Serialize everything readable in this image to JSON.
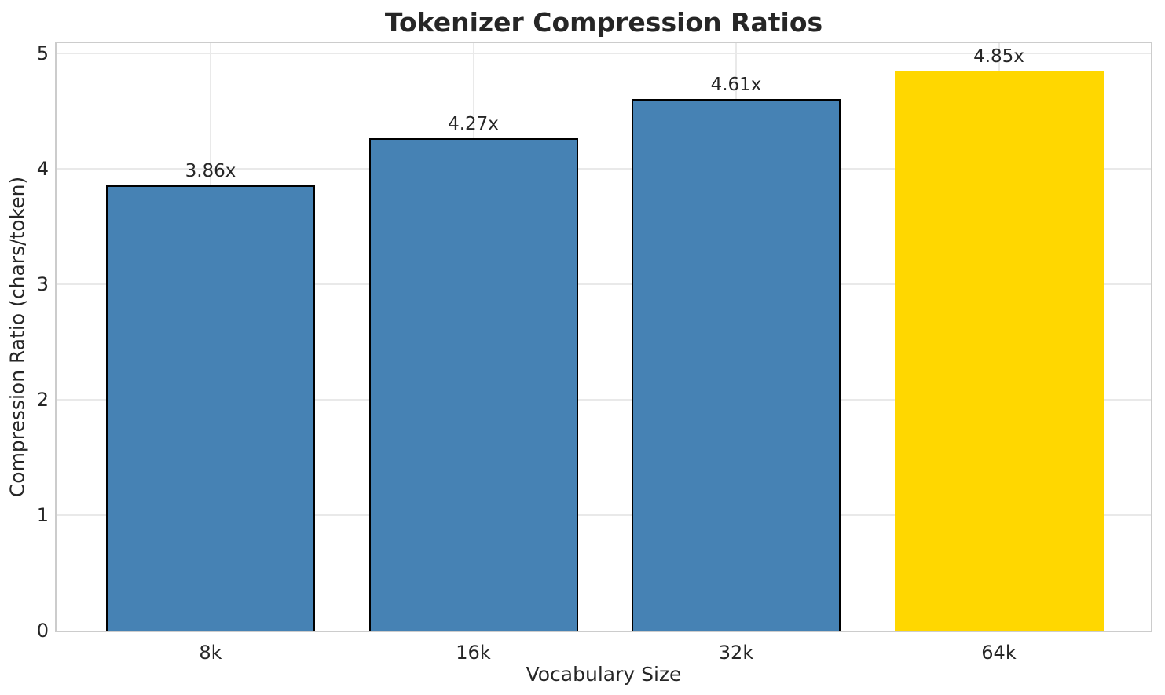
{
  "chart_data": {
    "type": "bar",
    "title": "Tokenizer Compression Ratios",
    "xlabel": "Vocabulary Size",
    "ylabel": "Compression Ratio (chars/token)",
    "categories": [
      "8k",
      "16k",
      "32k",
      "64k"
    ],
    "values": [
      3.86,
      4.27,
      4.61,
      4.85
    ],
    "bar_labels": [
      "3.86x",
      "4.27x",
      "4.61x",
      "4.85x"
    ],
    "yticks": [
      0,
      1,
      2,
      3,
      4,
      5
    ],
    "ylim": [
      0,
      5.09
    ],
    "grid": true,
    "legend_position": "none",
    "bar_colors": [
      "#4682B4",
      "#4682B4",
      "#4682B4",
      "#FFD700"
    ],
    "bar_edges": [
      true,
      true,
      true,
      false
    ]
  },
  "style": {
    "text_color": "#262626",
    "grid_color": "#e9e9e9",
    "spine_color": "#cccccc",
    "edge_color": "#000000",
    "background": "#ffffff"
  }
}
